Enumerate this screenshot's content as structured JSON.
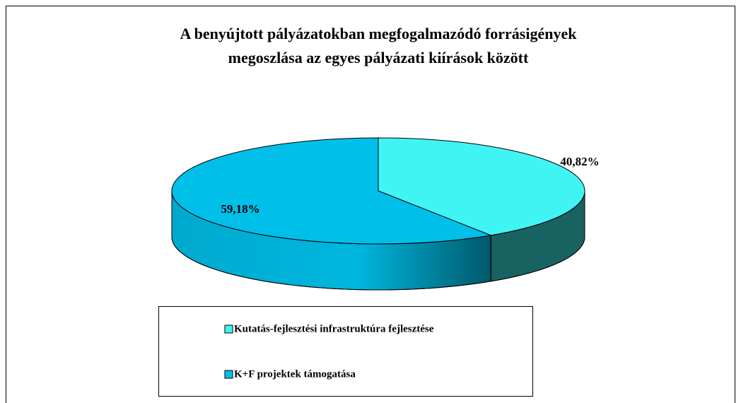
{
  "chart_data": {
    "type": "pie",
    "title": [
      "A benyújtott pályázatokban megfogalmazódó forrásigények",
      "megoszlása az egyes pályázati kiírások között"
    ],
    "categories": [
      "Kutatás-fejlesztési infrastruktúra fejlesztése",
      "K+F projektek támogatása"
    ],
    "values": [
      40.82,
      59.18
    ],
    "value_labels": [
      "40,82%",
      "59,18%"
    ],
    "colors": [
      "#40f4f4",
      "#00c0ea"
    ],
    "legend": "bottom"
  }
}
